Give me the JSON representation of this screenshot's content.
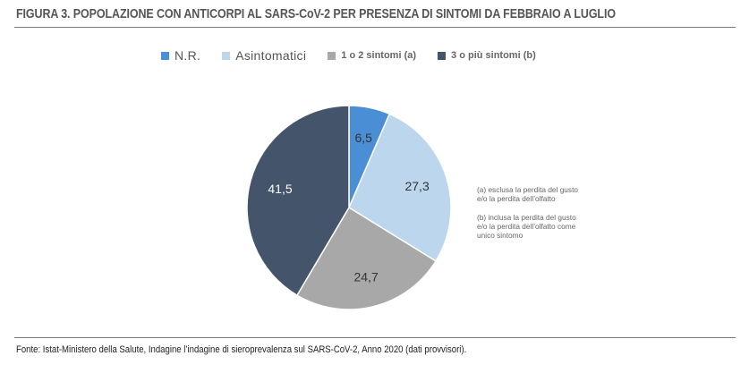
{
  "figure": {
    "title": "FIGURA  3.  POPOLAZIONE CON ANTICORPI AL SARS-CoV-2 PER PRESENZA DI SINTOMI DA FEBBRAIO A LUGLIO",
    "source": "Fonte: Istat-Ministero della Salute, Indagine l’indagine di sieroprevalenza sul SARS-CoV-2, Anno 2020 (dati provvisori).",
    "notes": {
      "a": "(a) esclusa la perdita del gusto\ne/o la perdita dell’olfatto",
      "b": "(b) inclusa la perdita del gusto\ne/o la perdita dell’olfatto come\nunico sintomo"
    }
  },
  "chart_data": {
    "type": "pie",
    "legend_position": "top",
    "start": "12 o'clock, clockwise",
    "slices": [
      {
        "label": "N.R.",
        "value": 6.5,
        "value_label": "6,5",
        "color": "#4a8fd6",
        "label_color": "#333333"
      },
      {
        "label": "Asintomatici",
        "value": 27.3,
        "value_label": "27,3",
        "color": "#bcd6ee",
        "label_color": "#333333"
      },
      {
        "label": "1 o 2 sintomi (a)",
        "value": 24.7,
        "value_label": "24,7",
        "color": "#a8a8a8",
        "label_color": "#333333"
      },
      {
        "label": "3 o più sintomi (b)",
        "value": 41.5,
        "value_label": "41,5",
        "color": "#44546a",
        "label_color": "#ffffff"
      }
    ]
  }
}
